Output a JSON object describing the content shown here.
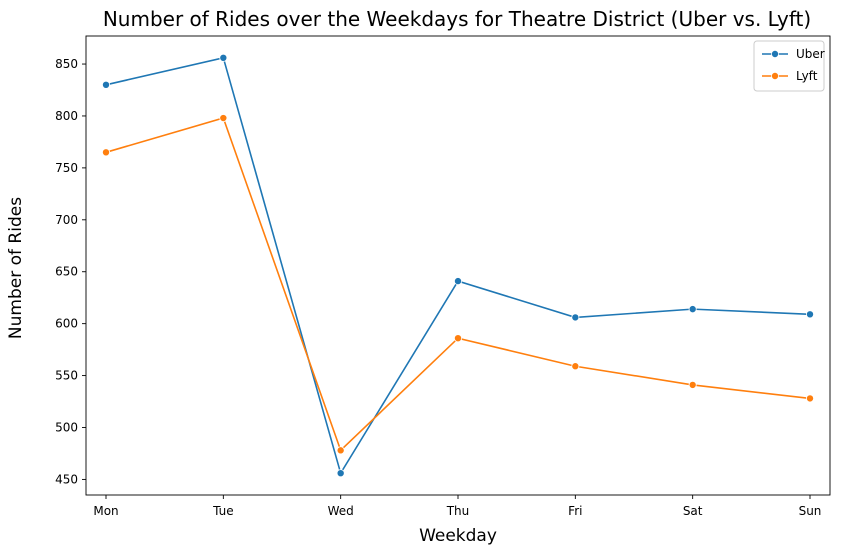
{
  "chart_data": {
    "type": "line",
    "title": "Number of Rides over the Weekdays for Theatre District (Uber vs. Lyft)",
    "xlabel": "Weekday",
    "ylabel": "Number of Rides",
    "categories": [
      "Mon",
      "Tue",
      "Wed",
      "Thu",
      "Fri",
      "Sat",
      "Sun"
    ],
    "ylim": [
      435,
      877
    ],
    "yticks": [
      450,
      500,
      550,
      600,
      650,
      700,
      750,
      800,
      850
    ],
    "grid": false,
    "legend_position": "top-right",
    "series": [
      {
        "name": "Uber",
        "color": "#1f77b4",
        "values": [
          830,
          856,
          456,
          641,
          606,
          614,
          609
        ]
      },
      {
        "name": "Lyft",
        "color": "#ff7f0e",
        "values": [
          765,
          798,
          478,
          586,
          559,
          541,
          528
        ]
      }
    ]
  }
}
